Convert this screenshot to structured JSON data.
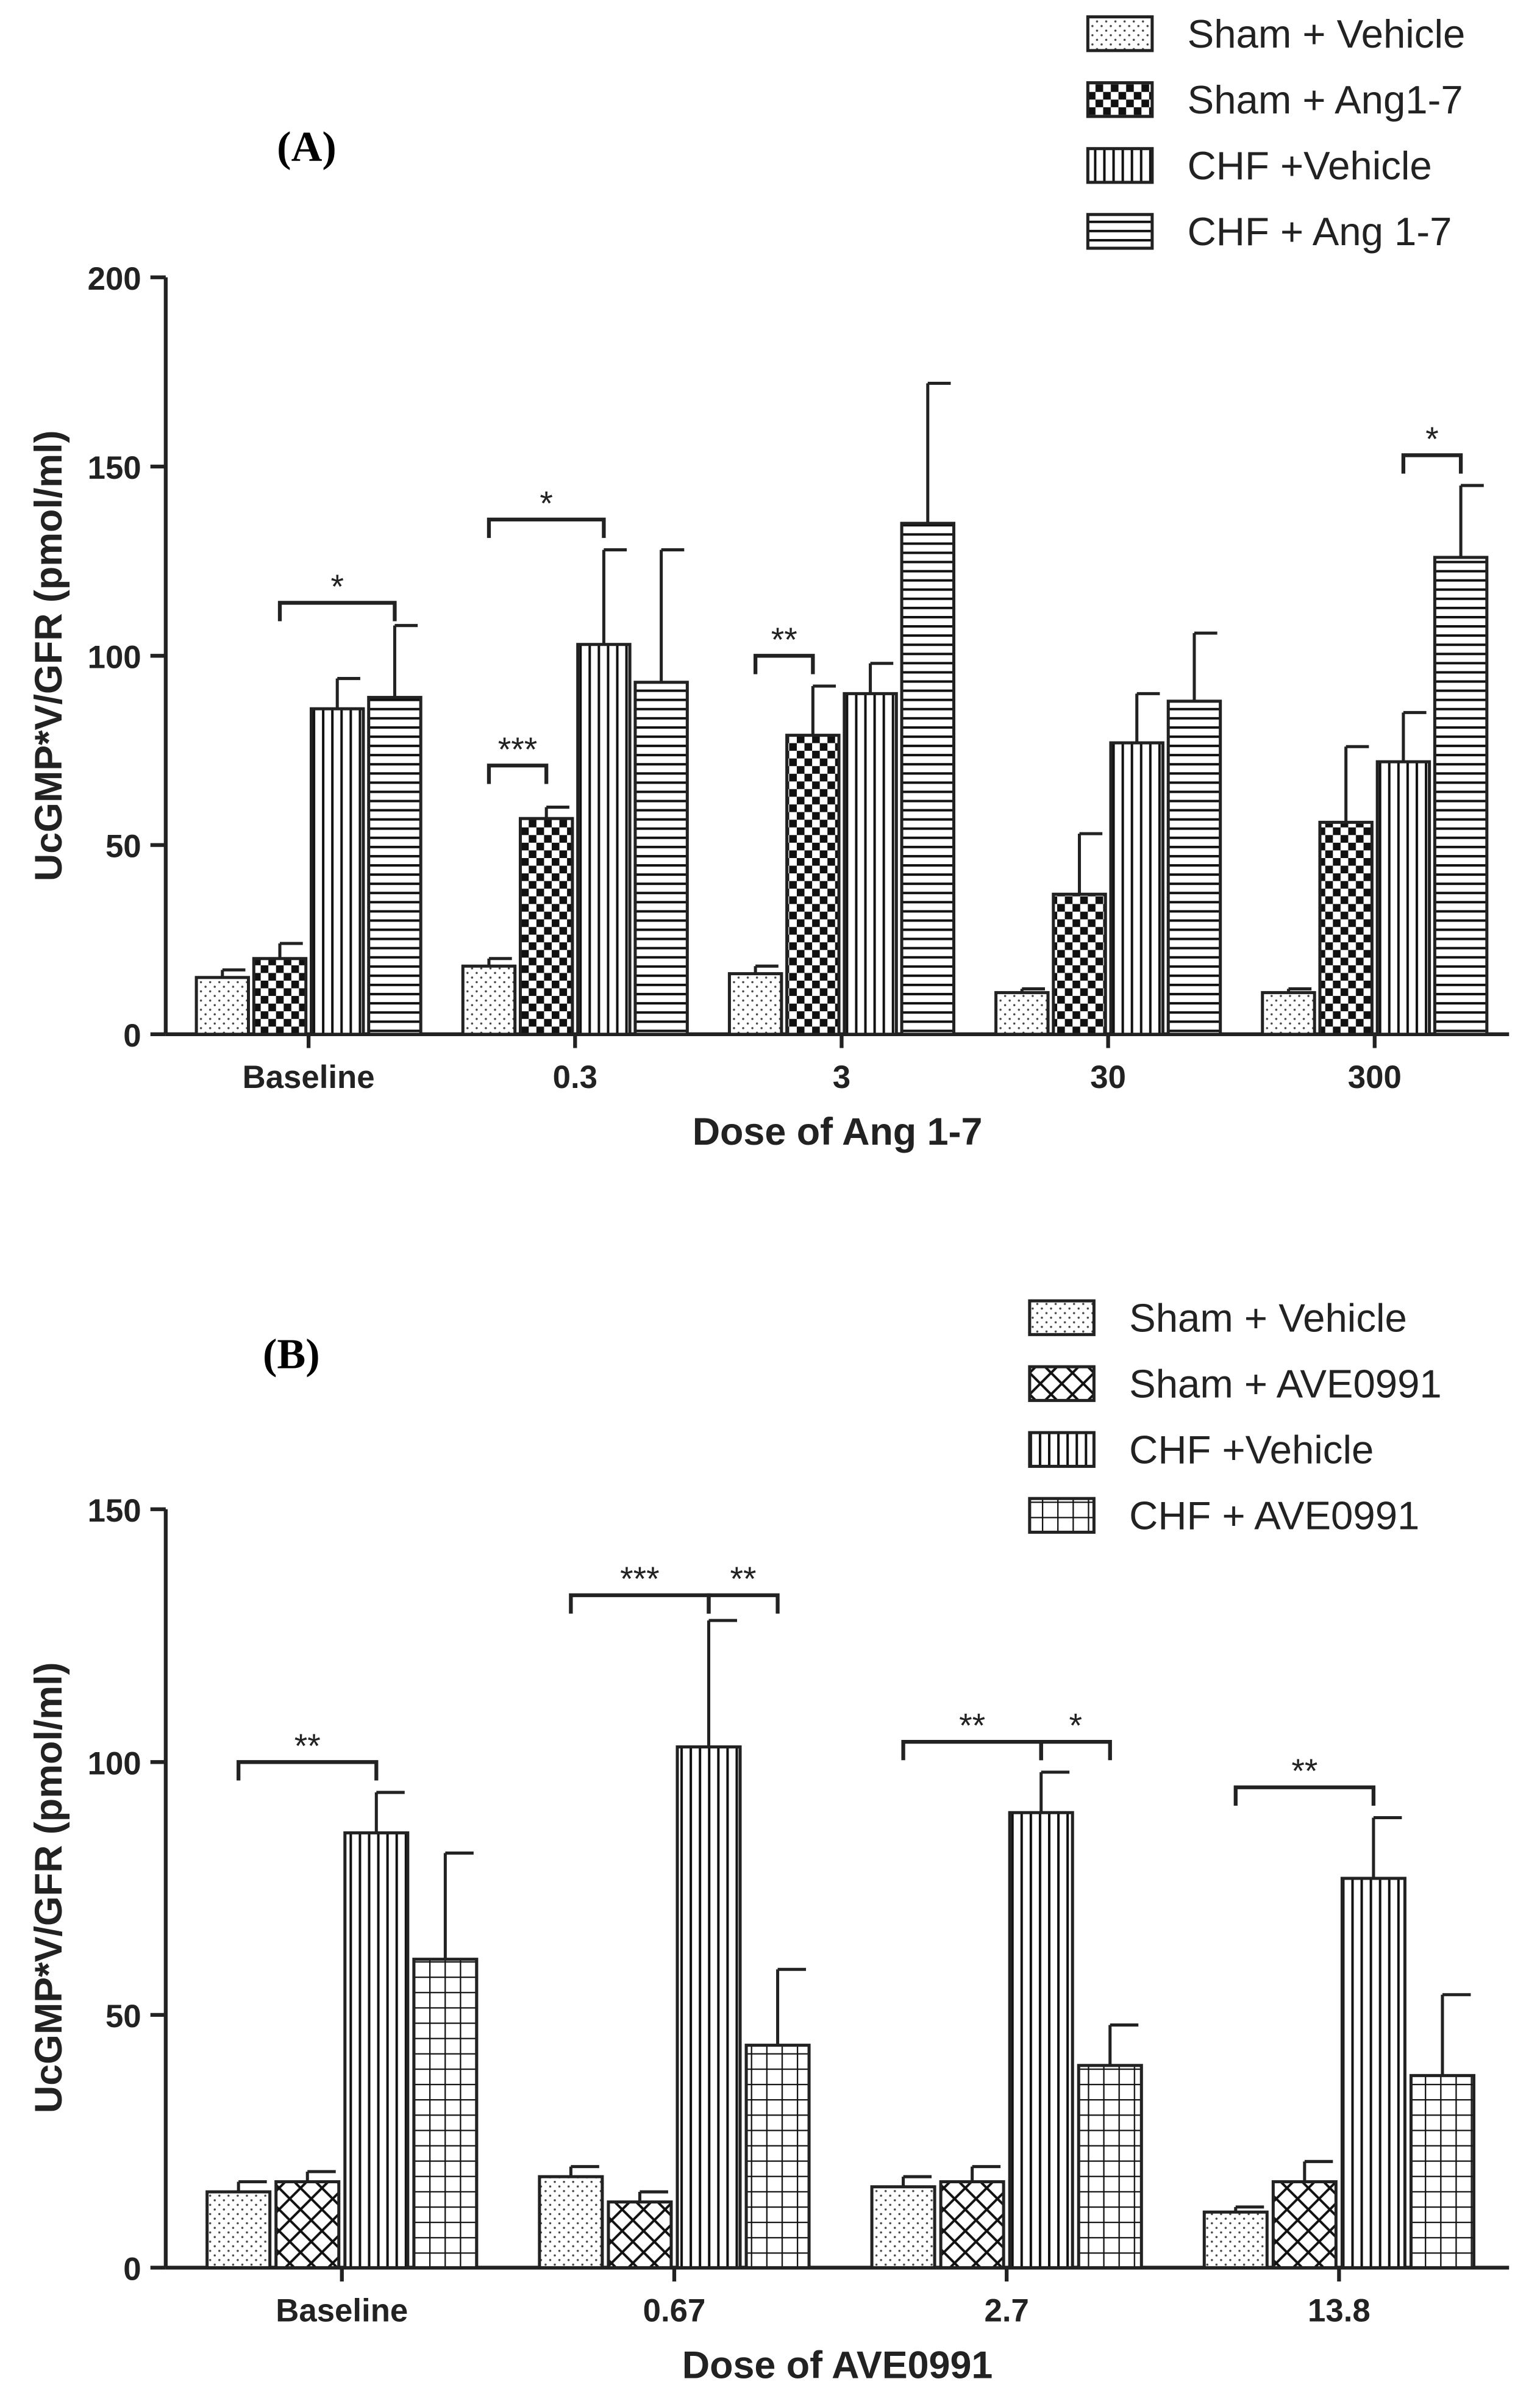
{
  "chart_data": [
    {
      "type": "bar",
      "panel_label": "(A)",
      "xlabel": "Dose of Ang 1-7",
      "ylabel": "UcGMP*V/GFR (pmol/ml)",
      "ylim": [
        0,
        200
      ],
      "yticks": [
        0,
        50,
        100,
        150,
        200
      ],
      "categories": [
        "Baseline",
        "0.3",
        "3",
        "30",
        "300"
      ],
      "series": [
        {
          "name": "Sham + Vehicle",
          "pattern": "dots",
          "values": [
            15,
            18,
            16,
            11,
            11
          ],
          "errors": [
            2,
            2,
            2,
            1,
            1
          ]
        },
        {
          "name": "Sham + Ang1-7",
          "pattern": "checker",
          "values": [
            20,
            57,
            79,
            37,
            56
          ],
          "errors": [
            4,
            3,
            13,
            16,
            20
          ]
        },
        {
          "name": "CHF +Vehicle",
          "pattern": "vlines",
          "values": [
            86,
            103,
            90,
            77,
            72
          ],
          "errors": [
            8,
            25,
            8,
            13,
            13
          ]
        },
        {
          "name": "CHF + Ang 1-7",
          "pattern": "hlines",
          "values": [
            89,
            93,
            135,
            88,
            126
          ],
          "errors": [
            19,
            35,
            37,
            18,
            19
          ]
        }
      ],
      "annotations": [
        {
          "group": 0,
          "from": 1,
          "to": 3,
          "y": 114,
          "label": "*"
        },
        {
          "group": 1,
          "from": 0,
          "to": 2,
          "y": 136,
          "label": "*"
        },
        {
          "group": 1,
          "from": 0,
          "to": 1,
          "y": 71,
          "label": "***"
        },
        {
          "group": 2,
          "from": 0,
          "to": 1,
          "y": 100,
          "label": "**"
        },
        {
          "group": 4,
          "from": 2,
          "to": 3,
          "y": 153,
          "label": "*"
        }
      ],
      "legend": "top-right"
    },
    {
      "type": "bar",
      "panel_label": "(B)",
      "xlabel": "Dose of AVE0991",
      "ylabel": "UcGMP*V/GFR (pmol/ml)",
      "ylim": [
        0,
        150
      ],
      "yticks": [
        0,
        50,
        100,
        150
      ],
      "categories": [
        "Baseline",
        "0.67",
        "2.7",
        "13.8"
      ],
      "series": [
        {
          "name": "Sham + Vehicle",
          "pattern": "dots",
          "values": [
            15,
            18,
            16,
            11
          ],
          "errors": [
            2,
            2,
            2,
            1
          ]
        },
        {
          "name": "Sham + AVE0991",
          "pattern": "xhatch",
          "values": [
            17,
            13,
            17,
            17
          ],
          "errors": [
            2,
            2,
            3,
            4
          ]
        },
        {
          "name": "CHF +Vehicle",
          "pattern": "vlines",
          "values": [
            86,
            103,
            90,
            77
          ],
          "errors": [
            8,
            25,
            8,
            12
          ]
        },
        {
          "name": "CHF + AVE0991",
          "pattern": "grid",
          "values": [
            61,
            44,
            40,
            38
          ],
          "errors": [
            21,
            15,
            8,
            16
          ]
        }
      ],
      "annotations": [
        {
          "group": 0,
          "from": 0,
          "to": 2,
          "y": 100,
          "label": "**"
        },
        {
          "group": 1,
          "from": 0,
          "to": 2,
          "y": 133,
          "label": "***"
        },
        {
          "group": 1,
          "from": 2,
          "to": 3,
          "y": 133,
          "label": "**"
        },
        {
          "group": 2,
          "from": 0,
          "to": 2,
          "y": 104,
          "label": "**"
        },
        {
          "group": 2,
          "from": 2,
          "to": 3,
          "y": 104,
          "label": "*"
        },
        {
          "group": 3,
          "from": 0,
          "to": 2,
          "y": 95,
          "label": "**"
        }
      ],
      "legend": "top-right"
    }
  ]
}
